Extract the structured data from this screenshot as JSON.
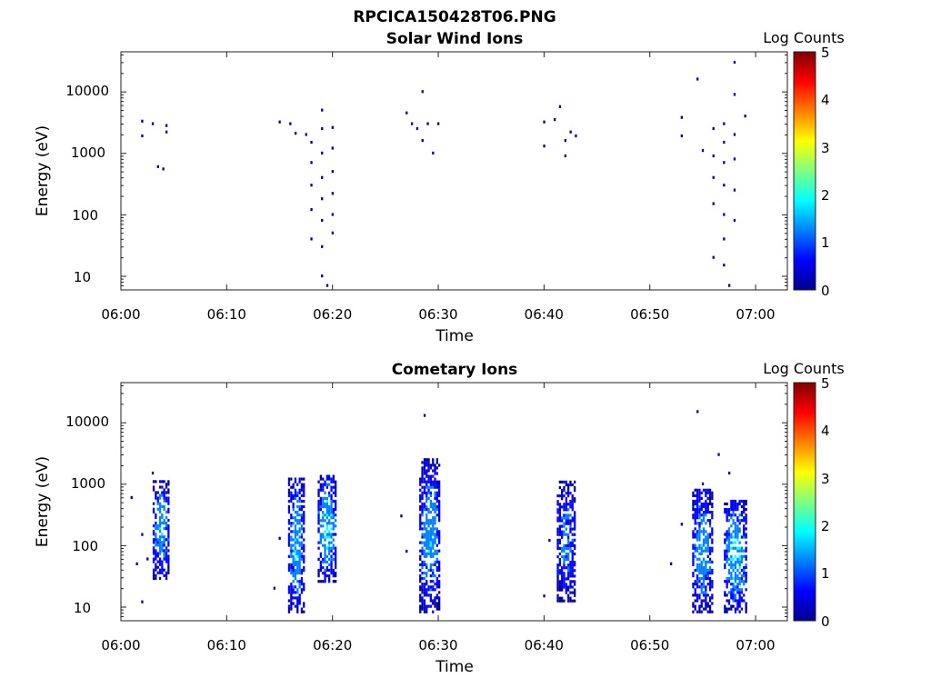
{
  "figure": {
    "title": "RPCICA150428T06.PNG"
  },
  "colormap": [
    "#00008f",
    "#0000ff",
    "#0080ff",
    "#00ffff",
    "#80ff80",
    "#ffff00",
    "#ff8000",
    "#ff0000",
    "#800000"
  ],
  "chart_data": [
    {
      "type": "heatmap",
      "title": "Solar Wind Ions",
      "xlabel": "Time",
      "ylabel": "Energy (eV)",
      "y_scale": "log",
      "xlim": [
        "06:00",
        "07:03"
      ],
      "ylim": [
        6,
        45000
      ],
      "x_ticks": [
        "06:00",
        "06:10",
        "06:20",
        "06:30",
        "06:40",
        "06:50",
        "07:00"
      ],
      "y_ticks": [
        "10",
        "100",
        "1000",
        "10000"
      ],
      "colorbar": {
        "label": "Log Counts",
        "range": [
          0,
          5
        ],
        "ticks": [
          "0",
          "1",
          "2",
          "3",
          "4",
          "5"
        ]
      },
      "points": [
        {
          "t": "06:02",
          "e": 3300,
          "c": 0.3
        },
        {
          "t": "06:02",
          "e": 1900,
          "c": 0.3
        },
        {
          "t": "06:03",
          "e": 3000,
          "c": 0.3
        },
        {
          "t": "06:03.5",
          "e": 600,
          "c": 0.3
        },
        {
          "t": "06:04",
          "e": 550,
          "c": 0.3
        },
        {
          "t": "06:04.3",
          "e": 2800,
          "c": 0.3
        },
        {
          "t": "06:04.3",
          "e": 2200,
          "c": 0.3
        },
        {
          "t": "06:15",
          "e": 3200,
          "c": 0.3
        },
        {
          "t": "06:16",
          "e": 3000,
          "c": 0.3
        },
        {
          "t": "06:16.5",
          "e": 2100,
          "c": 0.3
        },
        {
          "t": "06:17.5",
          "e": 2000,
          "c": 0.4
        },
        {
          "t": "06:18",
          "e": 1500,
          "c": 0.4
        },
        {
          "t": "06:18",
          "e": 700,
          "c": 0.4
        },
        {
          "t": "06:18",
          "e": 300,
          "c": 0.4
        },
        {
          "t": "06:18",
          "e": 120,
          "c": 0.4
        },
        {
          "t": "06:18",
          "e": 40,
          "c": 0.4
        },
        {
          "t": "06:19",
          "e": 5000,
          "c": 0.3
        },
        {
          "t": "06:19",
          "e": 2500,
          "c": 0.4
        },
        {
          "t": "06:19",
          "e": 1000,
          "c": 0.4
        },
        {
          "t": "06:19",
          "e": 400,
          "c": 0.4
        },
        {
          "t": "06:19",
          "e": 180,
          "c": 0.4
        },
        {
          "t": "06:19",
          "e": 80,
          "c": 0.4
        },
        {
          "t": "06:19",
          "e": 30,
          "c": 0.4
        },
        {
          "t": "06:19",
          "e": 10,
          "c": 0.5
        },
        {
          "t": "06:19.5",
          "e": 7,
          "c": 0.5
        },
        {
          "t": "06:20",
          "e": 2600,
          "c": 0.4
        },
        {
          "t": "06:20",
          "e": 1200,
          "c": 0.4
        },
        {
          "t": "06:20",
          "e": 500,
          "c": 0.4
        },
        {
          "t": "06:20",
          "e": 220,
          "c": 0.4
        },
        {
          "t": "06:20",
          "e": 100,
          "c": 0.4
        },
        {
          "t": "06:20",
          "e": 50,
          "c": 0.4
        },
        {
          "t": "06:27",
          "e": 4500,
          "c": 0.3
        },
        {
          "t": "06:27.5",
          "e": 3000,
          "c": 0.3
        },
        {
          "t": "06:28",
          "e": 2500,
          "c": 0.3
        },
        {
          "t": "06:28.5",
          "e": 10000,
          "c": 0.3
        },
        {
          "t": "06:28.5",
          "e": 1600,
          "c": 0.3
        },
        {
          "t": "06:29",
          "e": 3000,
          "c": 0.3
        },
        {
          "t": "06:29.5",
          "e": 1000,
          "c": 0.3
        },
        {
          "t": "06:30",
          "e": 3000,
          "c": 0.3
        },
        {
          "t": "06:40",
          "e": 3200,
          "c": 0.3
        },
        {
          "t": "06:40",
          "e": 1300,
          "c": 0.3
        },
        {
          "t": "06:41",
          "e": 3500,
          "c": 0.3
        },
        {
          "t": "06:41.5",
          "e": 5700,
          "c": 0.3
        },
        {
          "t": "06:42",
          "e": 1600,
          "c": 0.3
        },
        {
          "t": "06:42",
          "e": 900,
          "c": 0.3
        },
        {
          "t": "06:42.5",
          "e": 2200,
          "c": 0.3
        },
        {
          "t": "06:43",
          "e": 1900,
          "c": 0.3
        },
        {
          "t": "06:53",
          "e": 3800,
          "c": 0.3
        },
        {
          "t": "06:53",
          "e": 1900,
          "c": 0.3
        },
        {
          "t": "06:54.5",
          "e": 16000,
          "c": 0.3
        },
        {
          "t": "06:55",
          "e": 1100,
          "c": 0.4
        },
        {
          "t": "06:56",
          "e": 2500,
          "c": 0.4
        },
        {
          "t": "06:56",
          "e": 900,
          "c": 0.4
        },
        {
          "t": "06:56",
          "e": 400,
          "c": 0.4
        },
        {
          "t": "06:56",
          "e": 150,
          "c": 0.4
        },
        {
          "t": "06:56",
          "e": 20,
          "c": 0.5
        },
        {
          "t": "06:57",
          "e": 3000,
          "c": 0.4
        },
        {
          "t": "06:57",
          "e": 1500,
          "c": 0.4
        },
        {
          "t": "06:57",
          "e": 700,
          "c": 0.4
        },
        {
          "t": "06:57",
          "e": 300,
          "c": 0.4
        },
        {
          "t": "06:57",
          "e": 100,
          "c": 0.4
        },
        {
          "t": "06:57",
          "e": 40,
          "c": 0.4
        },
        {
          "t": "06:57",
          "e": 15,
          "c": 0.5
        },
        {
          "t": "06:57.5",
          "e": 7,
          "c": 0.5
        },
        {
          "t": "06:58",
          "e": 30000,
          "c": 0.3
        },
        {
          "t": "06:58",
          "e": 9000,
          "c": 0.3
        },
        {
          "t": "06:58",
          "e": 2000,
          "c": 0.4
        },
        {
          "t": "06:58",
          "e": 800,
          "c": 0.4
        },
        {
          "t": "06:58",
          "e": 250,
          "c": 0.4
        },
        {
          "t": "06:58",
          "e": 80,
          "c": 0.4
        },
        {
          "t": "06:59",
          "e": 4000,
          "c": 0.3
        }
      ]
    },
    {
      "type": "heatmap",
      "title": "Cometary Ions",
      "xlabel": "Time",
      "ylabel": "Energy (eV)",
      "y_scale": "log",
      "xlim": [
        "06:00",
        "07:03"
      ],
      "ylim": [
        6,
        45000
      ],
      "x_ticks": [
        "06:00",
        "06:10",
        "06:20",
        "06:30",
        "06:40",
        "06:50",
        "07:00"
      ],
      "y_ticks": [
        "10",
        "100",
        "1000",
        "10000"
      ],
      "colorbar": {
        "label": "Log Counts",
        "range": [
          0,
          5
        ],
        "ticks": [
          "0",
          "1",
          "2",
          "3",
          "4",
          "5"
        ]
      },
      "bursts": [
        {
          "t_start": "06:03",
          "t_end": "06:04.5",
          "e_min": 28,
          "e_max": 1100,
          "c_peak": 1.5
        },
        {
          "t_start": "06:15.8",
          "t_end": "06:17.2",
          "e_min": 8,
          "e_max": 1200,
          "c_peak": 1.6
        },
        {
          "t_start": "06:18.6",
          "t_end": "06:20.2",
          "e_min": 25,
          "e_max": 1400,
          "c_peak": 1.8
        },
        {
          "t_start": "06:28.2",
          "t_end": "06:30",
          "e_min": 8,
          "e_max": 2400,
          "c_peak": 1.5
        },
        {
          "t_start": "06:41.2",
          "t_end": "06:42.8",
          "e_min": 12,
          "e_max": 1100,
          "c_peak": 1.3
        },
        {
          "t_start": "06:54",
          "t_end": "06:55.8",
          "e_min": 8,
          "e_max": 800,
          "c_peak": 1.5
        },
        {
          "t_start": "06:57",
          "t_end": "06:59",
          "e_min": 8,
          "e_max": 550,
          "c_peak": 1.7
        }
      ],
      "points": [
        {
          "t": "06:01",
          "e": 600,
          "c": 0.3
        },
        {
          "t": "06:01.5",
          "e": 50,
          "c": 0.3
        },
        {
          "t": "06:02",
          "e": 150,
          "c": 0.3
        },
        {
          "t": "06:02",
          "e": 12,
          "c": 0.5
        },
        {
          "t": "06:02.5",
          "e": 60,
          "c": 0.3
        },
        {
          "t": "06:03",
          "e": 1500,
          "c": 0.3
        },
        {
          "t": "06:14.5",
          "e": 20,
          "c": 0.4
        },
        {
          "t": "06:15",
          "e": 130,
          "c": 0.3
        },
        {
          "t": "06:26.5",
          "e": 300,
          "c": 0.3
        },
        {
          "t": "06:27",
          "e": 80,
          "c": 0.3
        },
        {
          "t": "06:28.7",
          "e": 13000,
          "c": 0.3
        },
        {
          "t": "06:40",
          "e": 15,
          "c": 0.3
        },
        {
          "t": "06:40.5",
          "e": 120,
          "c": 0.3
        },
        {
          "t": "06:52",
          "e": 50,
          "c": 0.3
        },
        {
          "t": "06:53",
          "e": 220,
          "c": 0.3
        },
        {
          "t": "06:54.5",
          "e": 15000,
          "c": 0.3
        },
        {
          "t": "06:55",
          "e": 1000,
          "c": 0.3
        },
        {
          "t": "06:56.5",
          "e": 3000,
          "c": 0.3
        },
        {
          "t": "06:57.5",
          "e": 1500,
          "c": 0.3
        }
      ]
    }
  ]
}
